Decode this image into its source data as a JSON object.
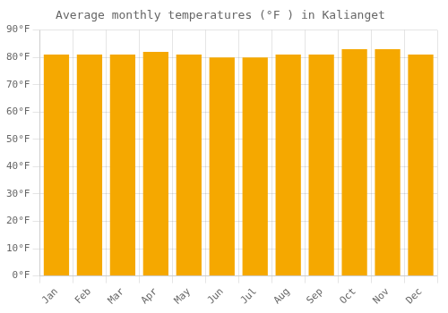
{
  "chart_data": {
    "type": "bar",
    "title": "Average monthly temperatures (°F ) in Kalianget",
    "categories": [
      "Jan",
      "Feb",
      "Mar",
      "Apr",
      "May",
      "Jun",
      "Jul",
      "Aug",
      "Sep",
      "Oct",
      "Nov",
      "Dec"
    ],
    "values": [
      81,
      81,
      81,
      82,
      81,
      80,
      80,
      81,
      81,
      83,
      83,
      81
    ],
    "color": "#F5A800",
    "ylim": [
      0,
      90
    ],
    "yticks": [
      {
        "value": 0,
        "label": "0°F"
      },
      {
        "value": 10,
        "label": "10°F"
      },
      {
        "value": 20,
        "label": "20°F"
      },
      {
        "value": 30,
        "label": "30°F"
      },
      {
        "value": 40,
        "label": "40°F"
      },
      {
        "value": 50,
        "label": "50°F"
      },
      {
        "value": 60,
        "label": "60°F"
      },
      {
        "value": 70,
        "label": "70°F"
      },
      {
        "value": 80,
        "label": "80°F"
      },
      {
        "value": 90,
        "label": "90°F"
      }
    ],
    "grid": true
  }
}
